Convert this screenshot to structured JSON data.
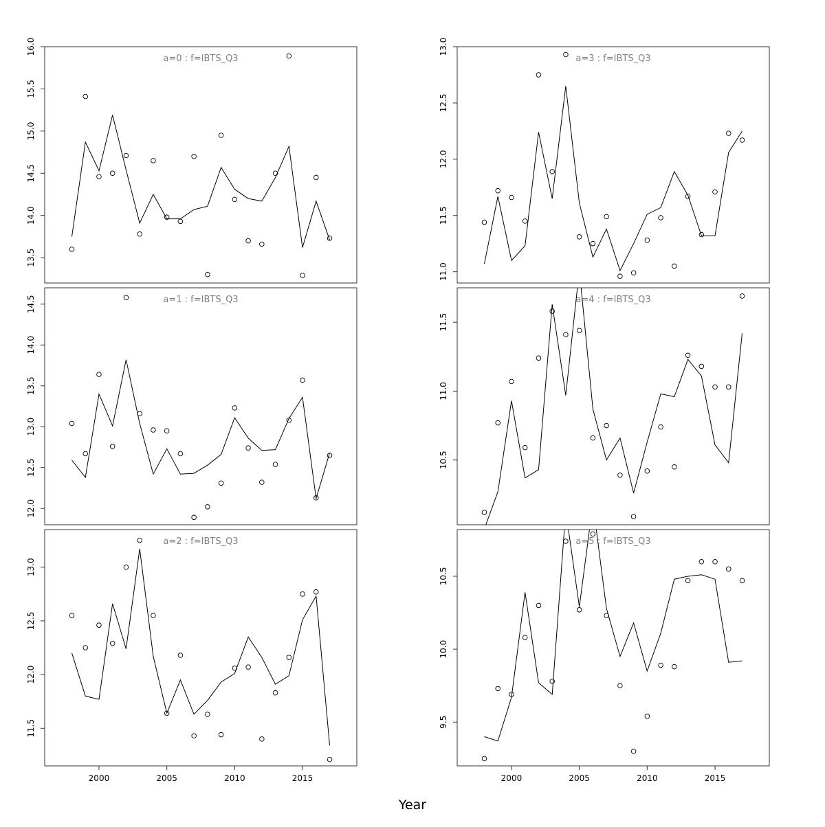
{
  "figure": {
    "xlabel": "Year"
  },
  "chart_data": [
    {
      "type": "scatter",
      "title": "a=0  :  f=IBTS_Q3",
      "xlim": [
        1996,
        2019
      ],
      "ylim": [
        13.2,
        16.0
      ],
      "x_ticks": [
        2000,
        2005,
        2010,
        2015
      ],
      "y_ticks": [
        13.5,
        14.0,
        14.5,
        15.0,
        15.5,
        16.0
      ],
      "x_tick_labels_shown": false,
      "series": [
        {
          "kind": "points",
          "x": [
            1998,
            1999,
            2000,
            2001,
            2002,
            2003,
            2004,
            2005,
            2006,
            2007,
            2008,
            2009,
            2010,
            2011,
            2012,
            2013,
            2014,
            2015,
            2016,
            2017
          ],
          "y": [
            13.6,
            15.41,
            14.46,
            14.5,
            14.71,
            13.78,
            14.65,
            13.98,
            13.93,
            14.7,
            13.3,
            14.95,
            14.19,
            13.7,
            13.66,
            14.5,
            15.89,
            13.29,
            14.45,
            13.73
          ]
        },
        {
          "kind": "line",
          "x": [
            1998,
            1999,
            2000,
            2001,
            2002,
            2003,
            2004,
            2005,
            2006,
            2007,
            2008,
            2009,
            2010,
            2011,
            2012,
            2013,
            2014,
            2015,
            2016,
            2017
          ],
          "y": [
            13.75,
            14.87,
            14.53,
            15.19,
            14.54,
            13.91,
            14.25,
            13.96,
            13.96,
            14.07,
            14.11,
            14.57,
            14.31,
            14.2,
            14.17,
            14.45,
            14.82,
            13.62,
            14.17,
            13.71
          ]
        }
      ]
    },
    {
      "type": "scatter",
      "title": "a=1  :  f=IBTS_Q3",
      "xlim": [
        1996,
        2019
      ],
      "ylim": [
        11.8,
        14.7
      ],
      "x_ticks": [
        2000,
        2005,
        2010,
        2015
      ],
      "y_ticks": [
        12.0,
        12.5,
        13.0,
        13.5,
        14.0,
        14.5
      ],
      "x_tick_labels_shown": false,
      "series": [
        {
          "kind": "points",
          "x": [
            1998,
            1999,
            2000,
            2001,
            2002,
            2003,
            2004,
            2005,
            2006,
            2007,
            2008,
            2009,
            2010,
            2011,
            2012,
            2013,
            2014,
            2015,
            2016,
            2017
          ],
          "y": [
            13.04,
            12.67,
            13.64,
            12.76,
            14.58,
            13.16,
            12.96,
            12.95,
            12.67,
            11.89,
            12.02,
            12.31,
            13.23,
            12.74,
            12.32,
            12.54,
            13.08,
            13.57,
            12.13,
            12.65
          ]
        },
        {
          "kind": "line",
          "x": [
            1998,
            1999,
            2000,
            2001,
            2002,
            2003,
            2004,
            2005,
            2006,
            2007,
            2008,
            2009,
            2010,
            2011,
            2012,
            2013,
            2014,
            2015,
            2016,
            2017
          ],
          "y": [
            12.59,
            12.38,
            13.4,
            13.01,
            13.82,
            13.04,
            12.42,
            12.73,
            12.42,
            12.43,
            12.53,
            12.66,
            13.11,
            12.86,
            12.71,
            12.72,
            13.1,
            13.36,
            12.12,
            12.68
          ]
        }
      ]
    },
    {
      "type": "scatter",
      "title": "a=2  :  f=IBTS_Q3",
      "xlim": [
        1996,
        2019
      ],
      "ylim": [
        11.15,
        13.35
      ],
      "x_ticks": [
        2000,
        2005,
        2010,
        2015
      ],
      "y_ticks": [
        11.5,
        12.0,
        12.5,
        13.0
      ],
      "x_tick_labels_shown": true,
      "series": [
        {
          "kind": "points",
          "x": [
            1998,
            1999,
            2000,
            2001,
            2002,
            2003,
            2004,
            2005,
            2006,
            2007,
            2008,
            2009,
            2010,
            2011,
            2012,
            2013,
            2014,
            2015,
            2016,
            2017
          ],
          "y": [
            12.55,
            12.25,
            12.46,
            12.29,
            13.0,
            13.25,
            12.55,
            11.64,
            12.18,
            11.43,
            11.63,
            11.44,
            12.06,
            12.07,
            11.4,
            11.83,
            12.16,
            12.75,
            12.77,
            11.21
          ]
        },
        {
          "kind": "line",
          "x": [
            1998,
            1999,
            2000,
            2001,
            2002,
            2003,
            2004,
            2005,
            2006,
            2007,
            2008,
            2009,
            2010,
            2011,
            2012,
            2013,
            2014,
            2015,
            2016,
            2017
          ],
          "y": [
            12.2,
            11.8,
            11.77,
            12.66,
            12.24,
            13.17,
            12.17,
            11.64,
            11.95,
            11.63,
            11.76,
            11.93,
            12.01,
            12.35,
            12.16,
            11.91,
            11.99,
            12.51,
            12.73,
            11.34
          ]
        }
      ]
    },
    {
      "type": "scatter",
      "title": "a=3  :  f=IBTS_Q3",
      "xlim": [
        1996,
        2019
      ],
      "ylim": [
        10.9,
        13.0
      ],
      "x_ticks": [
        2000,
        2005,
        2010,
        2015
      ],
      "y_ticks": [
        11.0,
        11.5,
        12.0,
        12.5,
        13.0
      ],
      "x_tick_labels_shown": false,
      "series": [
        {
          "kind": "points",
          "x": [
            1998,
            1999,
            2000,
            2001,
            2002,
            2003,
            2004,
            2005,
            2006,
            2007,
            2008,
            2009,
            2010,
            2011,
            2012,
            2013,
            2014,
            2015,
            2016,
            2017
          ],
          "y": [
            11.44,
            11.72,
            11.66,
            11.45,
            12.75,
            11.89,
            12.93,
            11.31,
            11.25,
            11.49,
            10.96,
            10.99,
            11.28,
            11.48,
            11.05,
            11.67,
            11.33,
            11.71,
            12.23,
            12.17
          ]
        },
        {
          "kind": "line",
          "x": [
            1998,
            1999,
            2000,
            2001,
            2002,
            2003,
            2004,
            2005,
            2006,
            2007,
            2008,
            2009,
            2010,
            2011,
            2012,
            2013,
            2014,
            2015,
            2016,
            2017
          ],
          "y": [
            11.07,
            11.67,
            11.1,
            11.23,
            12.24,
            11.65,
            12.65,
            11.61,
            11.13,
            11.38,
            11.01,
            11.25,
            11.51,
            11.57,
            11.89,
            11.68,
            11.32,
            11.32,
            12.06,
            12.25
          ]
        }
      ]
    },
    {
      "type": "scatter",
      "title": "a=4  :  f=IBTS_Q3",
      "xlim": [
        1996,
        2019
      ],
      "ylim": [
        10.03,
        11.75
      ],
      "x_ticks": [
        2000,
        2005,
        2010,
        2015
      ],
      "y_ticks": [
        10.5,
        11.0,
        11.5
      ],
      "x_tick_labels_shown": false,
      "series": [
        {
          "kind": "points",
          "x": [
            1998,
            1999,
            2000,
            2001,
            2002,
            2003,
            2004,
            2005,
            2006,
            2007,
            2008,
            2009,
            2010,
            2011,
            2012,
            2013,
            2014,
            2015,
            2016,
            2017
          ],
          "y": [
            10.12,
            10.77,
            11.07,
            10.59,
            11.24,
            11.58,
            11.41,
            11.44,
            10.66,
            10.75,
            10.39,
            10.09,
            10.42,
            10.74,
            10.45,
            11.26,
            11.18,
            11.03,
            11.03,
            11.69
          ]
        },
        {
          "kind": "line",
          "x": [
            1998,
            1999,
            2000,
            2001,
            2002,
            2003,
            2004,
            2005,
            2006,
            2007,
            2008,
            2009,
            2010,
            2011,
            2012,
            2013,
            2014,
            2015,
            2016,
            2017
          ],
          "y": [
            10.0,
            10.27,
            10.93,
            10.37,
            10.43,
            11.63,
            10.97,
            11.88,
            10.87,
            10.5,
            10.66,
            10.26,
            10.63,
            10.98,
            10.96,
            11.23,
            11.11,
            10.61,
            10.48,
            11.42
          ]
        }
      ]
    },
    {
      "type": "scatter",
      "title": "a=5  :  f=IBTS_Q3",
      "xlim": [
        1996,
        2019
      ],
      "ylim": [
        9.2,
        10.82
      ],
      "x_ticks": [
        2000,
        2005,
        2010,
        2015
      ],
      "y_ticks": [
        9.5,
        10.0,
        10.5
      ],
      "x_tick_labels_shown": true,
      "series": [
        {
          "kind": "points",
          "x": [
            1998,
            1999,
            2000,
            2001,
            2002,
            2003,
            2004,
            2005,
            2006,
            2007,
            2008,
            2009,
            2010,
            2011,
            2012,
            2013,
            2014,
            2015,
            2016,
            2017
          ],
          "y": [
            9.25,
            9.73,
            9.69,
            10.08,
            10.3,
            9.78,
            10.74,
            10.27,
            10.79,
            10.23,
            9.75,
            9.3,
            9.54,
            9.89,
            9.88,
            10.47,
            10.6,
            10.6,
            10.55,
            10.47
          ]
        },
        {
          "kind": "line",
          "x": [
            1998,
            1999,
            2000,
            2001,
            2002,
            2003,
            2004,
            2005,
            2006,
            2007,
            2008,
            2009,
            2010,
            2011,
            2012,
            2013,
            2014,
            2015,
            2016,
            2017
          ],
          "y": [
            9.4,
            9.37,
            9.67,
            10.39,
            9.77,
            9.69,
            10.95,
            10.29,
            11.0,
            10.28,
            9.95,
            10.18,
            9.85,
            10.11,
            10.48,
            10.5,
            10.51,
            10.48,
            9.91,
            9.92
          ]
        }
      ]
    }
  ]
}
